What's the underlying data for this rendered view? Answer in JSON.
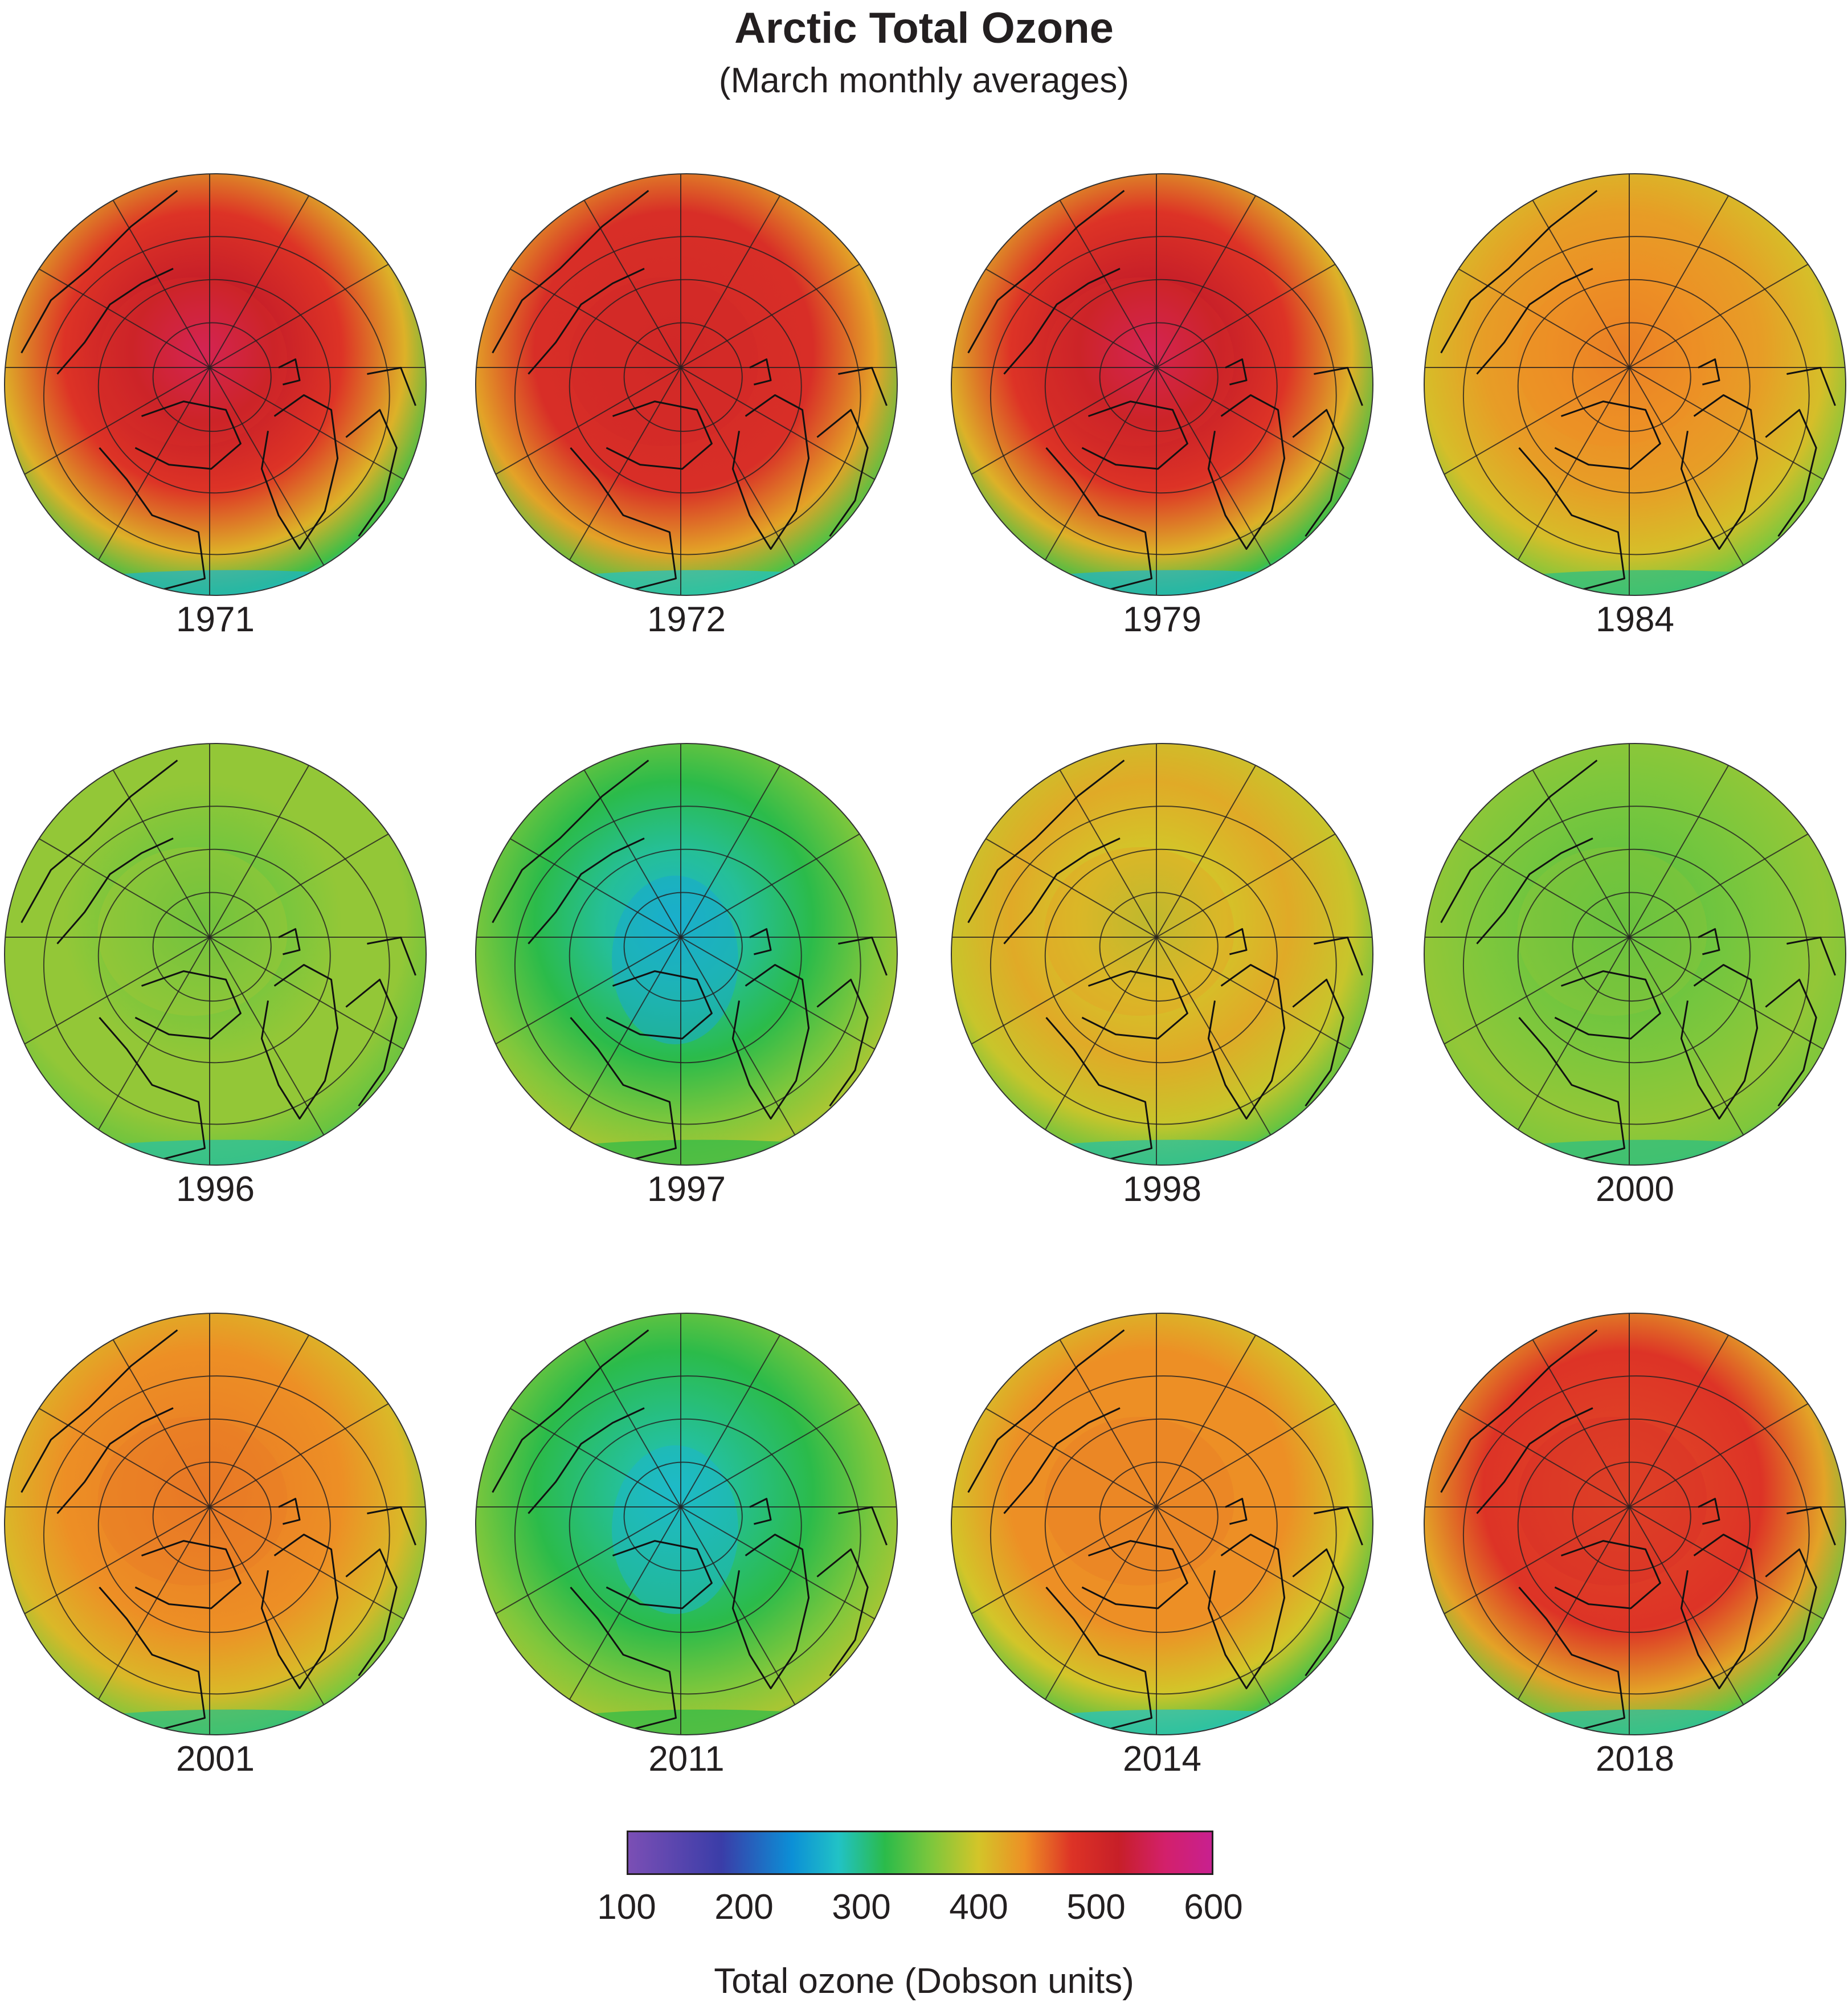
{
  "title": "Arctic Total Ozone",
  "subtitle": "(March monthly averages)",
  "maps": [
    {
      "year": "1971",
      "pole_dobson": 560,
      "mid_dobson": 480,
      "edge_dobson": 330,
      "low_pocket": false
    },
    {
      "year": "1972",
      "pole_dobson": 500,
      "mid_dobson": 490,
      "edge_dobson": 340,
      "low_pocket": false
    },
    {
      "year": "1979",
      "pole_dobson": 560,
      "mid_dobson": 480,
      "edge_dobson": 330,
      "low_pocket": false
    },
    {
      "year": "1984",
      "pole_dobson": 450,
      "mid_dobson": 430,
      "edge_dobson": 360,
      "low_pocket": false
    },
    {
      "year": "1996",
      "pole_dobson": 340,
      "mid_dobson": 370,
      "edge_dobson": 350,
      "low_pocket": false
    },
    {
      "year": "1997",
      "pole_dobson": 270,
      "mid_dobson": 320,
      "edge_dobson": 380,
      "low_pocket": true
    },
    {
      "year": "1998",
      "pole_dobson": 380,
      "mid_dobson": 420,
      "edge_dobson": 350,
      "low_pocket": false
    },
    {
      "year": "2000",
      "pole_dobson": 340,
      "mid_dobson": 360,
      "edge_dobson": 360,
      "low_pocket": false
    },
    {
      "year": "2001",
      "pole_dobson": 450,
      "mid_dobson": 440,
      "edge_dobson": 360,
      "low_pocket": false
    },
    {
      "year": "2011",
      "pole_dobson": 280,
      "mid_dobson": 320,
      "edge_dobson": 380,
      "low_pocket": true
    },
    {
      "year": "2014",
      "pole_dobson": 440,
      "mid_dobson": 440,
      "edge_dobson": 340,
      "low_pocket": false
    },
    {
      "year": "2018",
      "pole_dobson": 470,
      "mid_dobson": 480,
      "edge_dobson": 350,
      "low_pocket": false
    }
  ],
  "colorbar": {
    "min": 100,
    "max": 600,
    "ticks": [
      "100",
      "200",
      "300",
      "400",
      "500",
      "600"
    ],
    "label": "Total ozone (Dobson units)",
    "colors": [
      {
        "value": 100,
        "color": "#7b4fb5"
      },
      {
        "value": 180,
        "color": "#3a3da8"
      },
      {
        "value": 240,
        "color": "#0c8fd6"
      },
      {
        "value": 280,
        "color": "#21c2c6"
      },
      {
        "value": 320,
        "color": "#2bbb4a"
      },
      {
        "value": 360,
        "color": "#7ec73c"
      },
      {
        "value": 400,
        "color": "#d3c529"
      },
      {
        "value": 440,
        "color": "#ed8f25"
      },
      {
        "value": 480,
        "color": "#dd3326"
      },
      {
        "value": 520,
        "color": "#c71f28"
      },
      {
        "value": 560,
        "color": "#d3206b"
      },
      {
        "value": 600,
        "color": "#c8208f"
      }
    ]
  }
}
